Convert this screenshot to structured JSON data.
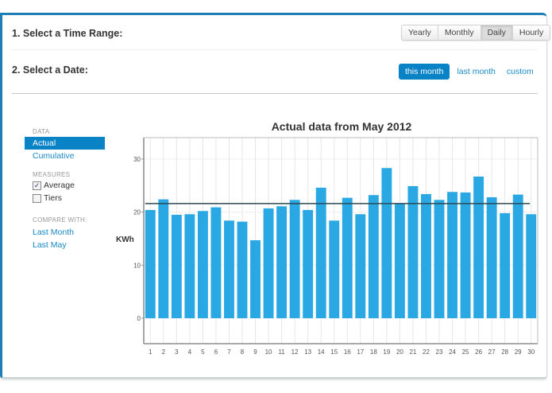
{
  "header": {
    "step1_label": "1. Select a Time Range:",
    "step2_label": "2. Select a Date:"
  },
  "time_range": {
    "buttons": [
      {
        "label": "Yearly",
        "active": false
      },
      {
        "label": "Monthly",
        "active": false
      },
      {
        "label": "Daily",
        "active": true
      },
      {
        "label": "Hourly",
        "active": false
      }
    ]
  },
  "date_select": {
    "active_label": "this month",
    "links": [
      "last month",
      "custom"
    ]
  },
  "sidebar": {
    "data_header": "DATA",
    "data_items": [
      {
        "label": "Actual",
        "selected": true
      },
      {
        "label": "Cumulative",
        "selected": false
      }
    ],
    "measures_header": "MEASURES",
    "measures": [
      {
        "label": "Average",
        "checked": true
      },
      {
        "label": "Tiers",
        "checked": false
      }
    ],
    "compare_header": "COMPARE WITH:",
    "compare_items": [
      "Last Month",
      "Last May"
    ]
  },
  "colors": {
    "accent": "#0a83c6",
    "bar": "#2aa8e3",
    "average_line": "#2c4a55",
    "panel_border": "#1e7fb5"
  },
  "chart_data": {
    "type": "bar",
    "title": "Actual data from May 2012",
    "xlabel": "",
    "ylabel": "KWh",
    "categories": [
      "1",
      "2",
      "3",
      "4",
      "5",
      "6",
      "7",
      "8",
      "9",
      "10",
      "11",
      "12",
      "13",
      "14",
      "15",
      "16",
      "17",
      "18",
      "19",
      "20",
      "21",
      "22",
      "23",
      "24",
      "25",
      "26",
      "27",
      "28",
      "29",
      "30"
    ],
    "values": [
      20.4,
      22.4,
      19.5,
      19.6,
      20.2,
      20.9,
      18.4,
      18.2,
      14.7,
      20.7,
      21.1,
      22.3,
      20.4,
      24.6,
      18.4,
      22.7,
      19.6,
      23.2,
      28.3,
      21.6,
      24.9,
      23.4,
      22.3,
      23.8,
      23.7,
      26.7,
      22.8,
      19.8,
      23.3,
      19.6
    ],
    "average_line": 21.6,
    "ylim": [
      -5,
      34
    ],
    "yticks": [
      0,
      10,
      20,
      30
    ],
    "grid": true,
    "legend": null
  }
}
